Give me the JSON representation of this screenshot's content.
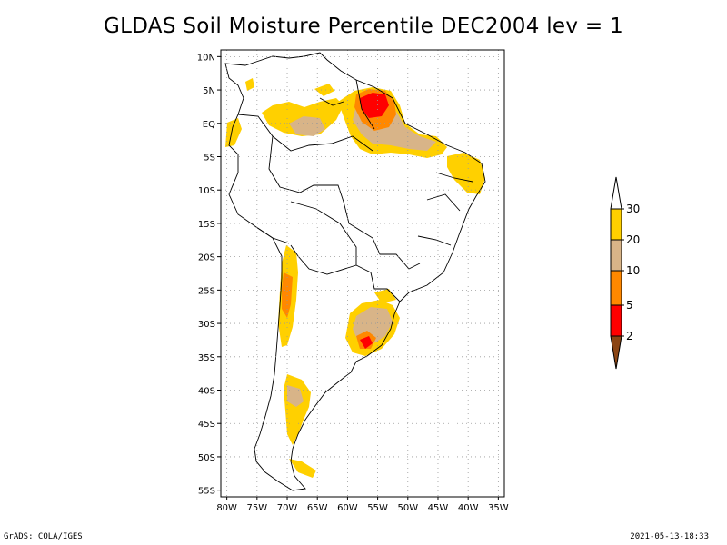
{
  "title": "GLDAS Soil Moisture Percentile DEC2004 lev = 1",
  "footer": {
    "left": "GrADS: COLA/IGES",
    "right": "2021-05-13-18:33"
  },
  "map": {
    "lon_range": [
      -81,
      -34
    ],
    "lat_range": [
      -56,
      11
    ],
    "lat_ticks": [
      {
        "value": 10,
        "label": "10N"
      },
      {
        "value": 5,
        "label": "5N"
      },
      {
        "value": 0,
        "label": "EQ"
      },
      {
        "value": -5,
        "label": "5S"
      },
      {
        "value": -10,
        "label": "10S"
      },
      {
        "value": -15,
        "label": "15S"
      },
      {
        "value": -20,
        "label": "20S"
      },
      {
        "value": -25,
        "label": "25S"
      },
      {
        "value": -30,
        "label": "30S"
      },
      {
        "value": -35,
        "label": "35S"
      },
      {
        "value": -40,
        "label": "40S"
      },
      {
        "value": -45,
        "label": "45S"
      },
      {
        "value": -50,
        "label": "50S"
      },
      {
        "value": -55,
        "label": "55S"
      }
    ],
    "lon_ticks": [
      {
        "value": -80,
        "label": "80W"
      },
      {
        "value": -75,
        "label": "75W"
      },
      {
        "value": -70,
        "label": "70W"
      },
      {
        "value": -65,
        "label": "65W"
      },
      {
        "value": -60,
        "label": "60W"
      },
      {
        "value": -55,
        "label": "55W"
      },
      {
        "value": -50,
        "label": "50W"
      },
      {
        "value": -45,
        "label": "45W"
      },
      {
        "value": -40,
        "label": "40W"
      },
      {
        "value": -35,
        "label": "35W"
      }
    ],
    "grid": "dotted",
    "colorbar": {
      "labels": [
        "30",
        "20",
        "10",
        "5",
        "2"
      ],
      "colors": [
        "#ffffff",
        "#ffd000",
        "#d8b488",
        "#ff8800",
        "#ff0000",
        "#8b4513"
      ]
    }
  }
}
